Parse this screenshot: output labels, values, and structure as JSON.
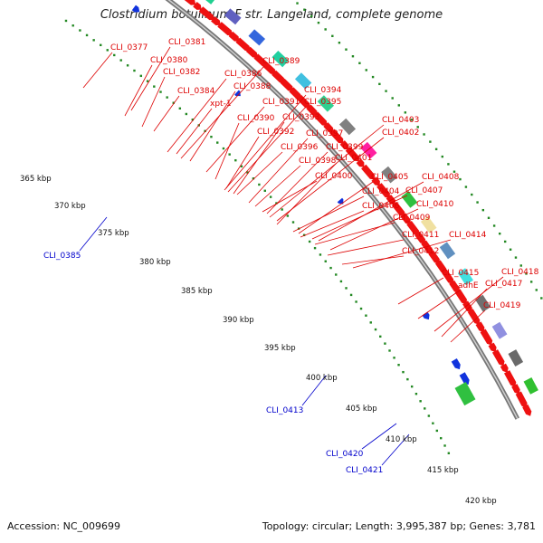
{
  "title": "Clostridium botulinum F str. Langeland, complete genome",
  "footer": {
    "accession": "Accession: NC_009699",
    "summary": "Topology: circular; Length: 3,995,387 bp; Genes: 3,781"
  },
  "colors": {
    "forward_gene": "#ee1111",
    "reverse_gene": "#1133dd",
    "backbone": "#888888",
    "tick": "#228822",
    "label_red": "#dd0000",
    "label_blue": "#0000cc"
  },
  "kbp_ticks": [
    "365 kbp",
    "370 kbp",
    "375 kbp",
    "380 kbp",
    "385 kbp",
    "390 kbp",
    "395 kbp",
    "400 kbp",
    "405 kbp",
    "410 kbp",
    "415 kbp",
    "420 kbp"
  ],
  "top_gene_labels": [
    "CLI_0377",
    "CLI_0381",
    "CLI_0380",
    "CLI_0382",
    "CLI_0386",
    "CLI_0389",
    "CLI_0384",
    "xpt-1",
    "CLI_0388",
    "CLI_0394",
    "CLI_0391",
    "CLI_0395",
    "CLI_0390",
    "CLI_0393",
    "CLI_0403",
    "CLI_0392",
    "CLI_0402",
    "CLI_0397",
    "CLI_0396",
    "CLI_0399",
    "CLI_0398",
    "CLI_0401",
    "CLI_0400",
    "CLI_0405",
    "CLI_0408",
    "CLI_0404",
    "CLI_0407",
    "CLI_0406",
    "CLI_0410",
    "CLI_0409",
    "CLI_0411",
    "CLI_0414",
    "CLI_0412",
    "CLI_0415",
    "CLI_0418",
    "adhE",
    "CLI_0417",
    "CLI_0419"
  ],
  "bottom_gene_labels": [
    "CLI_0385",
    "CLI_0413",
    "CLI_0420",
    "CLI_0421"
  ]
}
